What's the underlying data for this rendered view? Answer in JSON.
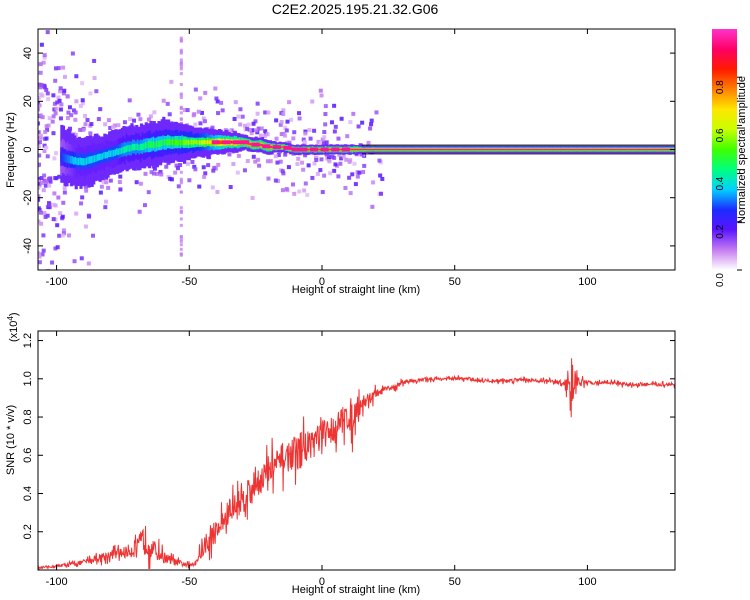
{
  "title": "C2E2.2025.195.21.32.G06",
  "chart_data": [
    {
      "type": "heatmap",
      "xlabel": "Height of straight line (km)",
      "ylabel": "Frequency (Hz)",
      "xlim": [
        -107,
        133
      ],
      "ylim": [
        -50,
        50
      ],
      "xticks": [
        -100,
        -50,
        0,
        50,
        100
      ],
      "yticks": [
        -40,
        -20,
        0,
        20,
        40
      ],
      "grid": false,
      "colorbar": {
        "label": "Normalized spectral amplitude",
        "range": [
          0,
          1
        ],
        "ticks": [
          0.0,
          0.2,
          0.4,
          0.6,
          0.8
        ],
        "tick_labels": [
          "0.0",
          "0.2",
          "0.4",
          "0.6",
          "0.8"
        ],
        "colors": [
          "#ffffff",
          "#c57cf0",
          "#5a14ff",
          "#1c2cff",
          "#00d0ff",
          "#00ff80",
          "#40ff00",
          "#c8ff00",
          "#ffe600",
          "#ff8000",
          "#ff1a00",
          "#ff0066",
          "#ff33cc"
        ]
      },
      "ridge": {
        "x": [
          -98,
          -95,
          -92,
          -89,
          -86,
          -83,
          -80,
          -77,
          -74,
          -71,
          -68,
          -65,
          -62,
          -59,
          -56,
          -53,
          -50,
          -47,
          -44,
          -41,
          -38,
          -35,
          -32,
          -29,
          -26,
          -23,
          -20,
          -17,
          -14,
          -11,
          -8,
          -5,
          -2,
          1,
          4,
          7,
          10,
          13,
          16,
          19,
          30,
          50,
          70,
          90,
          110,
          133
        ],
        "y": [
          -3,
          -4,
          -5,
          -5,
          -4,
          -3,
          -2,
          -1,
          0,
          1,
          1,
          2,
          2,
          3,
          3,
          3,
          3,
          3,
          3,
          3,
          3,
          3,
          3,
          3,
          2,
          2,
          1,
          1,
          1,
          0,
          0,
          0,
          0,
          0,
          0,
          0,
          0,
          0,
          0,
          0,
          0,
          0,
          0,
          0,
          0,
          0
        ],
        "amplitude": [
          0.25,
          0.3,
          0.35,
          0.35,
          0.35,
          0.35,
          0.35,
          0.35,
          0.4,
          0.4,
          0.4,
          0.45,
          0.45,
          0.45,
          0.5,
          0.5,
          0.55,
          0.55,
          0.6,
          0.7,
          0.8,
          0.9,
          0.9,
          0.95,
          0.95,
          0.95,
          0.95,
          0.95,
          0.95,
          0.9,
          0.9,
          0.95,
          0.95,
          0.95,
          0.95,
          0.95,
          0.95,
          0.95,
          0.95,
          0.95,
          0.95,
          0.95,
          0.95,
          0.95,
          0.95,
          0.95
        ],
        "spread_hz": [
          12,
          11,
          10,
          10,
          10,
          9,
          9,
          9,
          9,
          9,
          9,
          9,
          9,
          9,
          8,
          8,
          7,
          6,
          6,
          5,
          5,
          4,
          4,
          3,
          3,
          3,
          3,
          2,
          2,
          2,
          2,
          2,
          2,
          2,
          2,
          2,
          2,
          2,
          1.5,
          1.5,
          1.5,
          1.5,
          1.5,
          1.5,
          1.5,
          1.5
        ]
      }
    },
    {
      "type": "line",
      "xlabel": "Height of straight line (km)",
      "ylabel": "SNR (10 * v/v)",
      "y_multiplier_label": "(x10",
      "y_multiplier_exp": "4",
      "y_multiplier_close": ")",
      "xlim": [
        -107,
        133
      ],
      "ylim": [
        0,
        1.25
      ],
      "xticks": [
        -100,
        -50,
        0,
        50,
        100
      ],
      "yticks": [
        0.2,
        0.4,
        0.6,
        0.8,
        1.0,
        1.2
      ],
      "ytick_labels": [
        "0.2",
        "0.4",
        "0.6",
        "0.8",
        "1.0",
        "1.2"
      ],
      "grid": false,
      "series": [
        {
          "color": "#ee3333",
          "x": [
            -107,
            -100,
            -95,
            -90,
            -85,
            -80,
            -75,
            -70,
            -67,
            -65,
            -63,
            -60,
            -57,
            -55,
            -52,
            -50,
            -48,
            -45,
            -42,
            -40,
            -37,
            -35,
            -32,
            -30,
            -27,
            -25,
            -22,
            -20,
            -17,
            -15,
            -12,
            -10,
            -7,
            -5,
            -2,
            0,
            2,
            4,
            6,
            8,
            10,
            11,
            12,
            14,
            16,
            18,
            20,
            22,
            25,
            28,
            30,
            33,
            36,
            40,
            45,
            50,
            55,
            60,
            65,
            70,
            75,
            80,
            85,
            88,
            90,
            92,
            93,
            94,
            95,
            96,
            98,
            100,
            105,
            110,
            115,
            120,
            125,
            130,
            133
          ],
          "y": [
            0.01,
            0.02,
            0.03,
            0.04,
            0.06,
            0.08,
            0.09,
            0.11,
            0.16,
            0.14,
            0.1,
            0.07,
            0.05,
            0.04,
            0.03,
            0.02,
            0.04,
            0.1,
            0.16,
            0.2,
            0.26,
            0.3,
            0.34,
            0.38,
            0.42,
            0.46,
            0.49,
            0.52,
            0.55,
            0.58,
            0.6,
            0.62,
            0.64,
            0.66,
            0.69,
            0.7,
            0.72,
            0.74,
            0.76,
            0.79,
            0.81,
            0.78,
            0.83,
            0.86,
            0.88,
            0.9,
            0.92,
            0.93,
            0.95,
            0.96,
            0.98,
            0.99,
            0.99,
            1.0,
            1.0,
            1.0,
            1.0,
            0.99,
            0.99,
            0.99,
            1.0,
            0.99,
            0.99,
            0.98,
            0.98,
            0.97,
            0.95,
            1.0,
            0.98,
            0.99,
            0.98,
            0.98,
            0.98,
            0.98,
            0.97,
            0.97,
            0.97,
            0.97,
            0.97
          ],
          "noise": [
            0.005,
            0.01,
            0.015,
            0.02,
            0.03,
            0.04,
            0.05,
            0.07,
            0.14,
            0.12,
            0.08,
            0.05,
            0.04,
            0.03,
            0.02,
            0.02,
            0.03,
            0.06,
            0.09,
            0.1,
            0.11,
            0.12,
            0.13,
            0.14,
            0.14,
            0.14,
            0.14,
            0.14,
            0.14,
            0.14,
            0.14,
            0.14,
            0.14,
            0.14,
            0.14,
            0.14,
            0.13,
            0.12,
            0.12,
            0.12,
            0.12,
            0.2,
            0.12,
            0.09,
            0.07,
            0.05,
            0.04,
            0.03,
            0.02,
            0.02,
            0.02,
            0.015,
            0.015,
            0.015,
            0.015,
            0.015,
            0.015,
            0.015,
            0.015,
            0.015,
            0.015,
            0.015,
            0.015,
            0.02,
            0.03,
            0.05,
            0.1,
            0.24,
            0.12,
            0.05,
            0.03,
            0.015,
            0.015,
            0.015,
            0.015,
            0.015,
            0.015,
            0.015,
            0.015
          ]
        }
      ]
    }
  ]
}
